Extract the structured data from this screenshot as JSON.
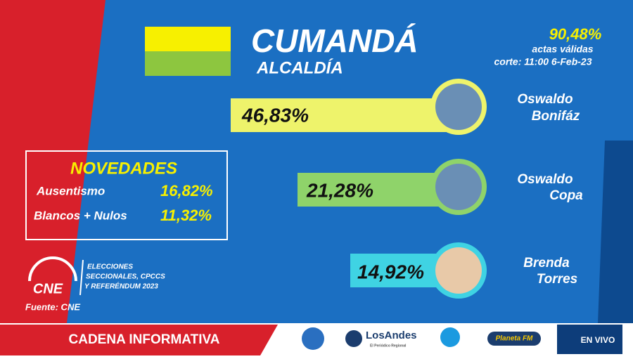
{
  "header": {
    "title": "CUMANDÁ",
    "subtitle": "ALCALDÍA",
    "valid_percent": "90,48%",
    "valid_label": "actas válidas",
    "cutoff": "corte: 11:00 6-Feb-23"
  },
  "candidates": [
    {
      "first_name": "Oswaldo",
      "last_name": "Bonifáz",
      "percent": "46,83%"
    },
    {
      "first_name": "Oswaldo",
      "last_name": "Copa",
      "percent": "21,28%"
    },
    {
      "first_name": "Brenda",
      "last_name": "Torres",
      "percent": "14,92%"
    }
  ],
  "novedades": {
    "title": "NOVEDADES",
    "rows": [
      [
        "Ausentismo",
        "16,82%"
      ],
      [
        "Blancos + Nulos",
        "11,32%"
      ]
    ]
  },
  "logo": {
    "name": "CNE",
    "lines": [
      "ELECCIONES",
      "SECCIONALES, CPCCS",
      "Y REFERÉNDUM 2023"
    ]
  },
  "source": "Fuente: CNE",
  "footer": {
    "network": "CADENA INFORMATIVA",
    "partners": [
      "LosAndes",
      "El Periódico Regional",
      "Planeta FM"
    ],
    "live": "EN VIVO"
  }
}
